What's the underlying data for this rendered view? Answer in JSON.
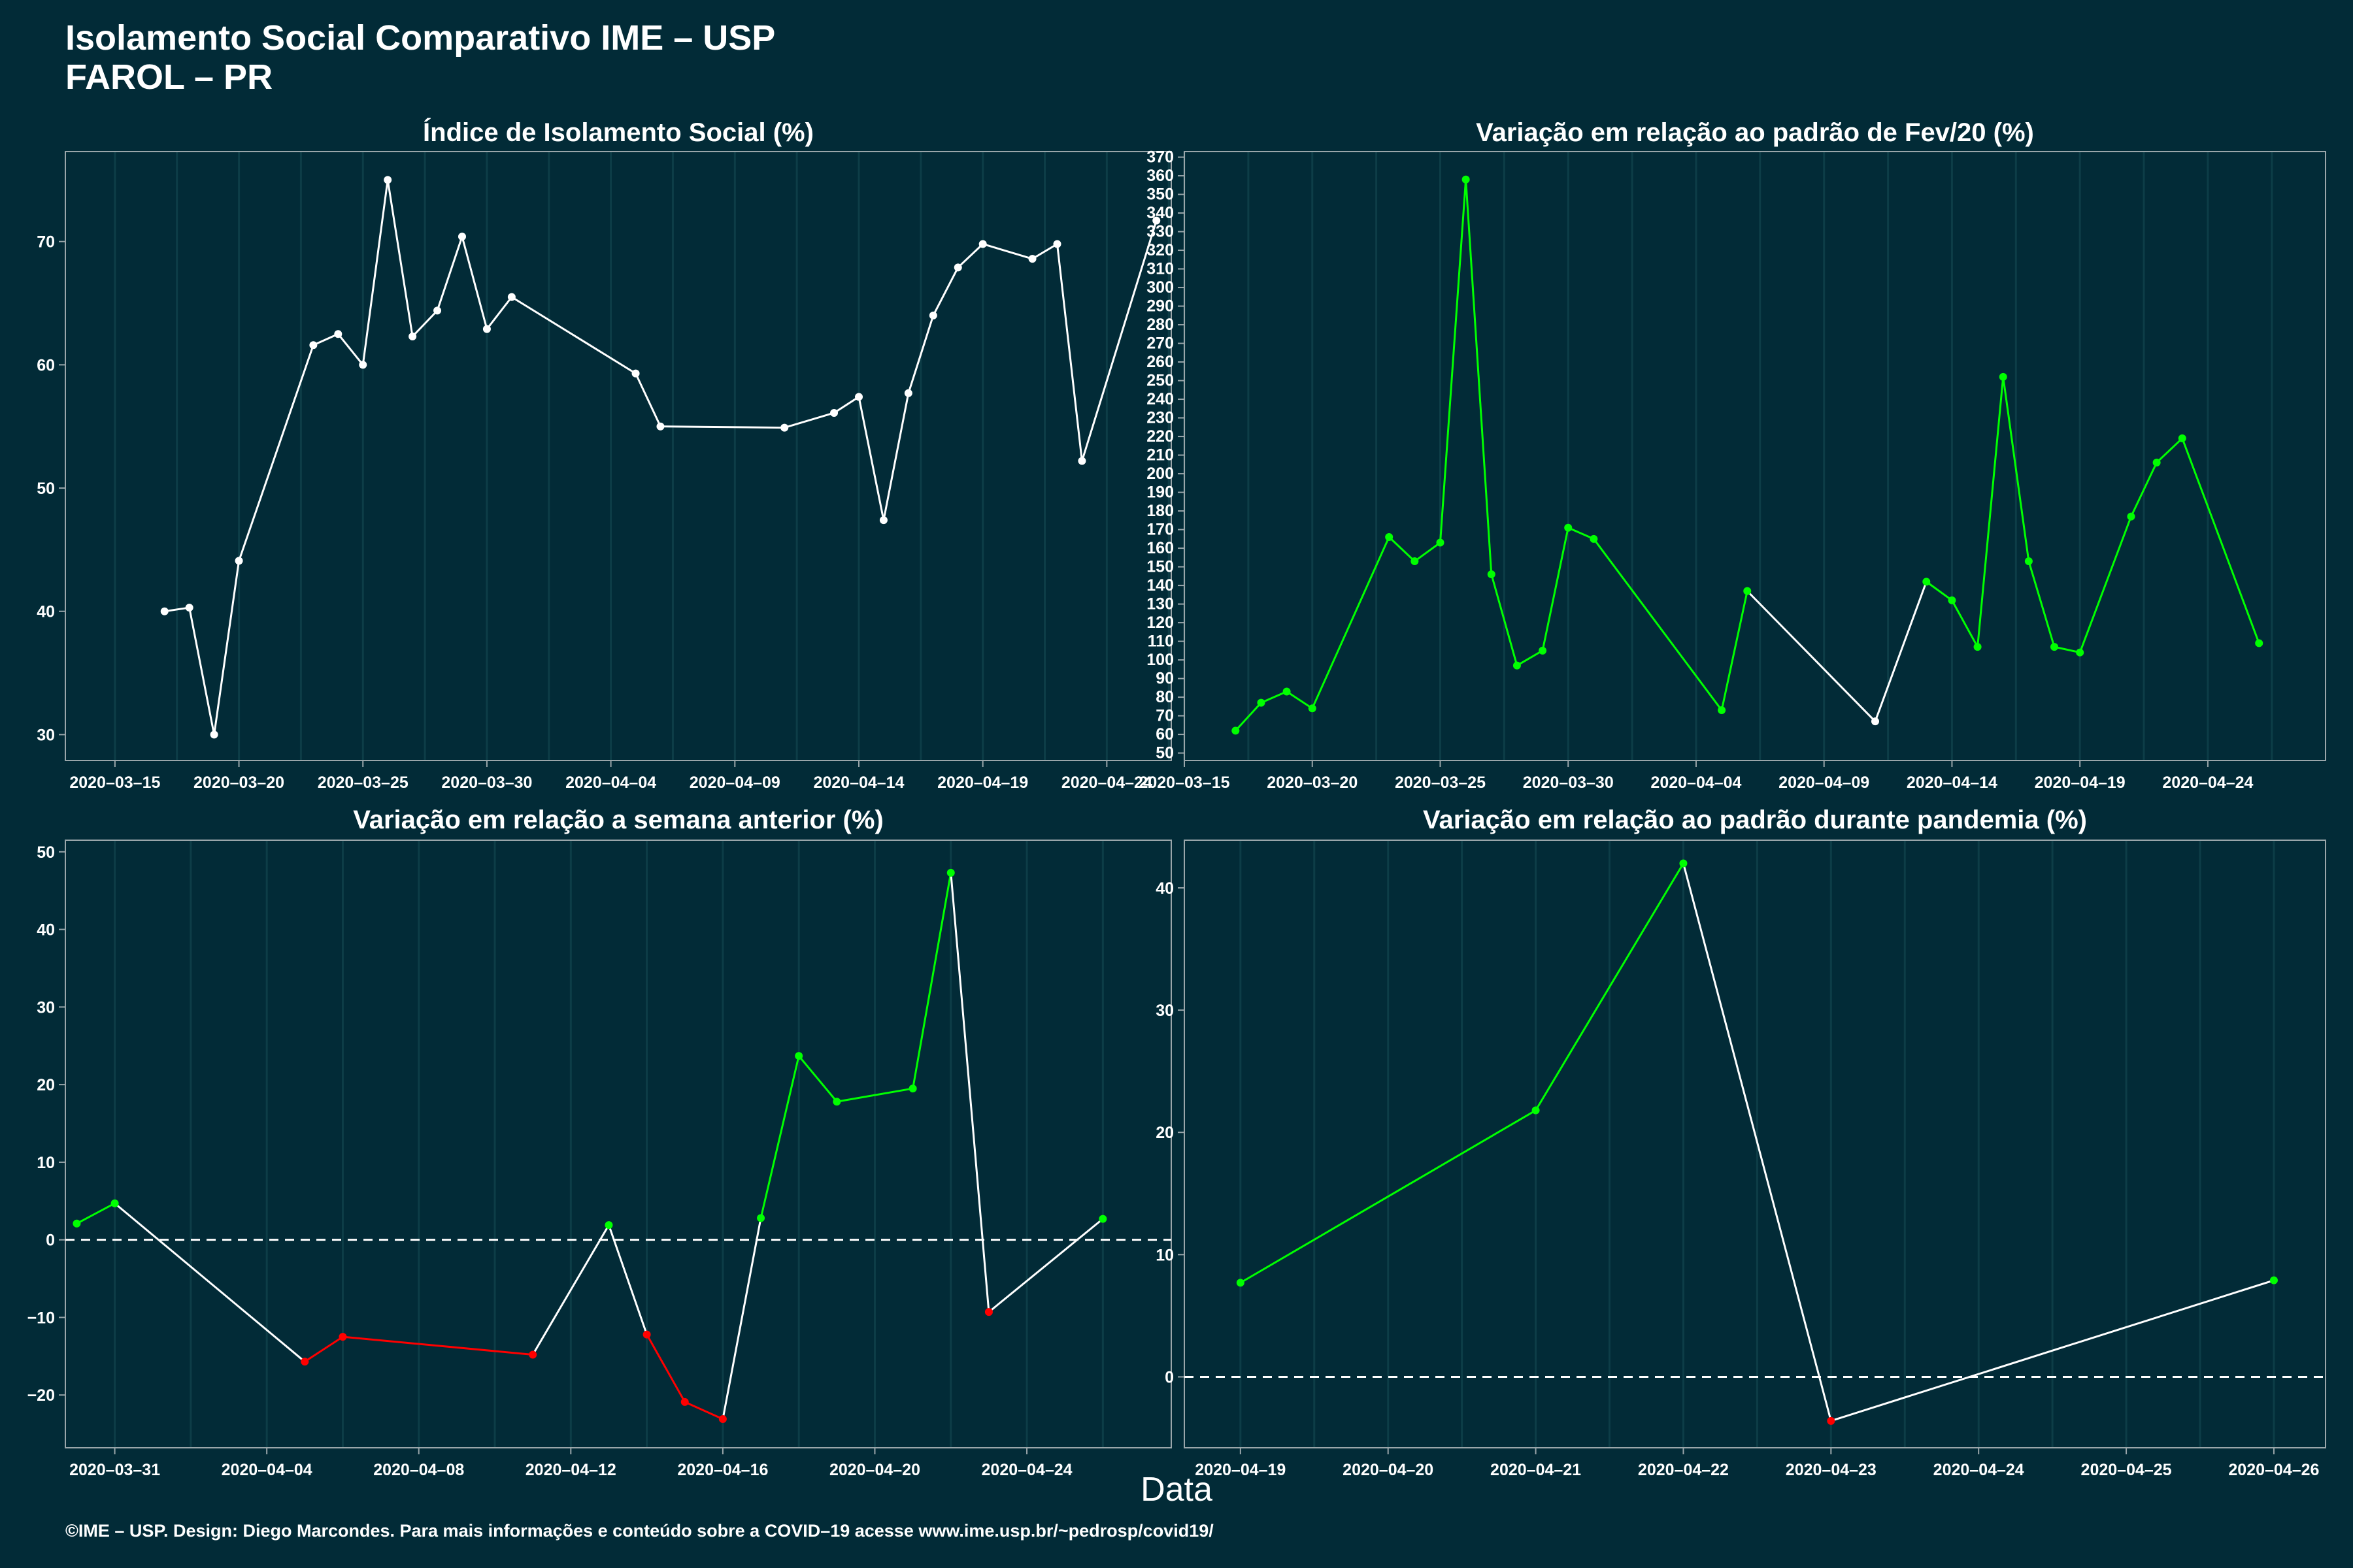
{
  "header": {
    "title_line1": "Isolamento Social Comparativo IME – USP",
    "title_line2": "FAROL – PR"
  },
  "x_axis_label": "Data",
  "footer": "©IME – USP. Design: Diego Marcondes. Para mais informações e conteúdo sobre a COVID–19 acesse www.ime.usp.br/~pedrosp/covid19/",
  "colors": {
    "background": "#022b37",
    "neutral": "#ffffff",
    "increase": "#00ff00",
    "decrease": "#ff0000",
    "gridline": "#0d3d47",
    "axis": "#9aa6aa"
  },
  "chart_data": [
    {
      "type": "line",
      "title": "Índice de Isolamento Social (%)",
      "x_ticks": [
        "2020-03-15",
        "2020-03-20",
        "2020-03-25",
        "2020-03-30",
        "2020-04-04",
        "2020-04-09",
        "2020-04-14",
        "2020-04-19",
        "2020-04-24"
      ],
      "y_ticks": [
        30,
        40,
        50,
        60,
        70
      ],
      "xlim": [
        "2020-03-13",
        "2020-04-26.6"
      ],
      "ylim": [
        27.9,
        77.3
      ],
      "points": [
        {
          "x": "2020-03-17",
          "y": 40.0,
          "c": "n"
        },
        {
          "x": "2020-03-18",
          "y": 40.3,
          "c": "n"
        },
        {
          "x": "2020-03-19",
          "y": 30.0,
          "c": "n"
        },
        {
          "x": "2020-03-20",
          "y": 44.1,
          "c": "n"
        },
        {
          "x": "2020-03-23",
          "y": 61.6,
          "c": "n"
        },
        {
          "x": "2020-03-24",
          "y": 62.5,
          "c": "n"
        },
        {
          "x": "2020-03-25",
          "y": 60.0,
          "c": "n"
        },
        {
          "x": "2020-03-26",
          "y": 75.0,
          "c": "n"
        },
        {
          "x": "2020-03-27",
          "y": 62.3,
          "c": "n"
        },
        {
          "x": "2020-03-28",
          "y": 64.4,
          "c": "n"
        },
        {
          "x": "2020-03-29",
          "y": 70.4,
          "c": "n"
        },
        {
          "x": "2020-03-30",
          "y": 62.9,
          "c": "n"
        },
        {
          "x": "2020-03-31",
          "y": 65.5,
          "c": "n"
        },
        {
          "x": "2020-04-05",
          "y": 59.3,
          "c": "n"
        },
        {
          "x": "2020-04-06",
          "y": 55.0,
          "c": "n"
        },
        {
          "x": "2020-04-11",
          "y": 54.9,
          "c": "n"
        },
        {
          "x": "2020-04-13",
          "y": 56.1,
          "c": "n"
        },
        {
          "x": "2020-04-14",
          "y": 57.4,
          "c": "n"
        },
        {
          "x": "2020-04-15",
          "y": 47.4,
          "c": "n"
        },
        {
          "x": "2020-04-16",
          "y": 57.7,
          "c": "n"
        },
        {
          "x": "2020-04-17",
          "y": 64.0,
          "c": "n"
        },
        {
          "x": "2020-04-18",
          "y": 67.9,
          "c": "n"
        },
        {
          "x": "2020-04-19",
          "y": 69.8,
          "c": "n"
        },
        {
          "x": "2020-04-21",
          "y": 68.6,
          "c": "n"
        },
        {
          "x": "2020-04-22",
          "y": 69.8,
          "c": "n"
        },
        {
          "x": "2020-04-23",
          "y": 52.2,
          "c": "n"
        },
        {
          "x": "2020-04-26",
          "y": 71.7,
          "c": "n"
        }
      ]
    },
    {
      "type": "line",
      "title": "Variação em relação ao padrão de Fev/20 (%)",
      "x_ticks": [
        "2020-03-15",
        "2020-03-20",
        "2020-03-25",
        "2020-03-30",
        "2020-04-04",
        "2020-04-09",
        "2020-04-14",
        "2020-04-19",
        "2020-04-24"
      ],
      "y_ticks": [
        50,
        60,
        70,
        80,
        90,
        100,
        110,
        120,
        130,
        140,
        150,
        160,
        170,
        180,
        190,
        200,
        210,
        220,
        230,
        240,
        250,
        260,
        270,
        280,
        290,
        300,
        310,
        320,
        330,
        340,
        350,
        360,
        370
      ],
      "xlim": [
        "2020-03-15",
        "2020-04-28.6"
      ],
      "ylim": [
        46,
        373
      ],
      "points": [
        {
          "x": "2020-03-17",
          "y": 62,
          "c": "g"
        },
        {
          "x": "2020-03-18",
          "y": 77,
          "c": "g"
        },
        {
          "x": "2020-03-19",
          "y": 83,
          "c": "g"
        },
        {
          "x": "2020-03-20",
          "y": 74,
          "c": "g"
        },
        {
          "x": "2020-03-23",
          "y": 166,
          "c": "g"
        },
        {
          "x": "2020-03-24",
          "y": 153,
          "c": "g"
        },
        {
          "x": "2020-03-25",
          "y": 163,
          "c": "g"
        },
        {
          "x": "2020-03-26",
          "y": 358,
          "c": "g"
        },
        {
          "x": "2020-03-27",
          "y": 146,
          "c": "g"
        },
        {
          "x": "2020-03-28",
          "y": 97,
          "c": "g"
        },
        {
          "x": "2020-03-29",
          "y": 105,
          "c": "g"
        },
        {
          "x": "2020-03-30",
          "y": 171,
          "c": "g"
        },
        {
          "x": "2020-03-31",
          "y": 165,
          "c": "g"
        },
        {
          "x": "2020-04-05",
          "y": 73,
          "c": "g"
        },
        {
          "x": "2020-04-06",
          "y": 137,
          "c": "g"
        },
        {
          "x": "2020-04-11",
          "y": 67,
          "c": "n"
        },
        {
          "x": "2020-04-13",
          "y": 142,
          "c": "g"
        },
        {
          "x": "2020-04-14",
          "y": 132,
          "c": "g"
        },
        {
          "x": "2020-04-15",
          "y": 107,
          "c": "g"
        },
        {
          "x": "2020-04-16",
          "y": 252,
          "c": "g"
        },
        {
          "x": "2020-04-17",
          "y": 153,
          "c": "g"
        },
        {
          "x": "2020-04-18",
          "y": 107,
          "c": "g"
        },
        {
          "x": "2020-04-19",
          "y": 104,
          "c": "g"
        },
        {
          "x": "2020-04-21",
          "y": 177,
          "c": "g"
        },
        {
          "x": "2020-04-22",
          "y": 206,
          "c": "g"
        },
        {
          "x": "2020-04-23",
          "y": 219,
          "c": "g"
        },
        {
          "x": "2020-04-26",
          "y": 109,
          "c": "g"
        }
      ]
    },
    {
      "type": "line",
      "title": "Variação em relação a semana anterior (%)",
      "x_ticks": [
        "2020-03-31",
        "2020-04-04",
        "2020-04-08",
        "2020-04-12",
        "2020-04-16",
        "2020-04-20",
        "2020-04-24"
      ],
      "y_ticks": [
        -20,
        -10,
        0,
        10,
        20,
        30,
        40,
        50
      ],
      "xlim": [
        "2020-03-29.7",
        "2020-04-27.8"
      ],
      "ylim": [
        -26.8,
        51.5
      ],
      "reference_line": 0,
      "points": [
        {
          "x": "2020-03-30",
          "y": 2.1,
          "c": "g"
        },
        {
          "x": "2020-03-31",
          "y": 4.7,
          "c": "g"
        },
        {
          "x": "2020-04-05",
          "y": -15.7,
          "c": "r"
        },
        {
          "x": "2020-04-06",
          "y": -12.5,
          "c": "r"
        },
        {
          "x": "2020-04-11",
          "y": -14.8,
          "c": "r"
        },
        {
          "x": "2020-04-13",
          "y": 1.9,
          "c": "g"
        },
        {
          "x": "2020-04-14",
          "y": -12.2,
          "c": "r"
        },
        {
          "x": "2020-04-15",
          "y": -20.9,
          "c": "r"
        },
        {
          "x": "2020-04-16",
          "y": -23.1,
          "c": "r"
        },
        {
          "x": "2020-04-17",
          "y": 2.8,
          "c": "g"
        },
        {
          "x": "2020-04-18",
          "y": 23.7,
          "c": "g"
        },
        {
          "x": "2020-04-19",
          "y": 17.8,
          "c": "g"
        },
        {
          "x": "2020-04-21",
          "y": 19.5,
          "c": "g"
        },
        {
          "x": "2020-04-22",
          "y": 47.3,
          "c": "g"
        },
        {
          "x": "2020-04-23",
          "y": -9.3,
          "c": "r"
        },
        {
          "x": "2020-04-26",
          "y": 2.7,
          "c": "g"
        }
      ]
    },
    {
      "type": "line",
      "title": "Variação em relação ao padrão durante pandemia (%)",
      "x_ticks": [
        "2020-04-19",
        "2020-04-20",
        "2020-04-21",
        "2020-04-22",
        "2020-04-23",
        "2020-04-24",
        "2020-04-25",
        "2020-04-26"
      ],
      "y_ticks": [
        0,
        10,
        20,
        30,
        40
      ],
      "xlim": [
        "2020-04-18.62",
        "2020-04-26.35"
      ],
      "ylim": [
        -5.8,
        43.9
      ],
      "reference_line": 0,
      "points": [
        {
          "x": "2020-04-19",
          "y": 7.7,
          "c": "g"
        },
        {
          "x": "2020-04-21",
          "y": 21.8,
          "c": "g"
        },
        {
          "x": "2020-04-22",
          "y": 42.0,
          "c": "g"
        },
        {
          "x": "2020-04-23",
          "y": -3.6,
          "c": "r"
        },
        {
          "x": "2020-04-26",
          "y": 7.9,
          "c": "g"
        }
      ]
    }
  ]
}
